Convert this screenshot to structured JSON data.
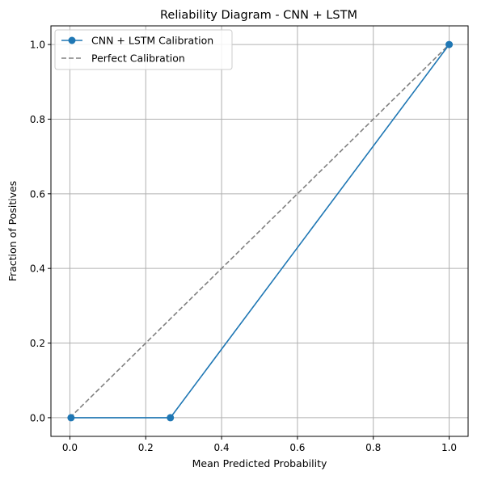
{
  "chart_data": {
    "type": "line",
    "title": "Reliability Diagram - CNN + LSTM",
    "xlabel": "Mean Predicted Probability",
    "ylabel": "Fraction of Positives",
    "xlim": [
      -0.05,
      1.05
    ],
    "ylim": [
      -0.05,
      1.05
    ],
    "grid": true,
    "legend_position": "top-left",
    "x_ticks": [
      0.0,
      0.2,
      0.4,
      0.6,
      0.8,
      1.0
    ],
    "y_ticks": [
      0.0,
      0.2,
      0.4,
      0.6,
      0.8,
      1.0
    ],
    "x_tick_labels": [
      "0.0",
      "0.2",
      "0.4",
      "0.6",
      "0.8",
      "1.0"
    ],
    "y_tick_labels": [
      "0.0",
      "0.2",
      "0.4",
      "0.6",
      "0.8",
      "1.0"
    ],
    "series": [
      {
        "name": "CNN + LSTM Calibration",
        "x": [
          0.003,
          0.265,
          1.0
        ],
        "y": [
          0.0,
          0.0,
          1.0
        ],
        "color": "#1f77b4",
        "line_style": "solid",
        "marker": "circle"
      },
      {
        "name": "Perfect Calibration",
        "x": [
          0.0,
          1.0
        ],
        "y": [
          0.0,
          1.0
        ],
        "color": "#808080",
        "line_style": "dashed",
        "marker": "none"
      }
    ]
  }
}
